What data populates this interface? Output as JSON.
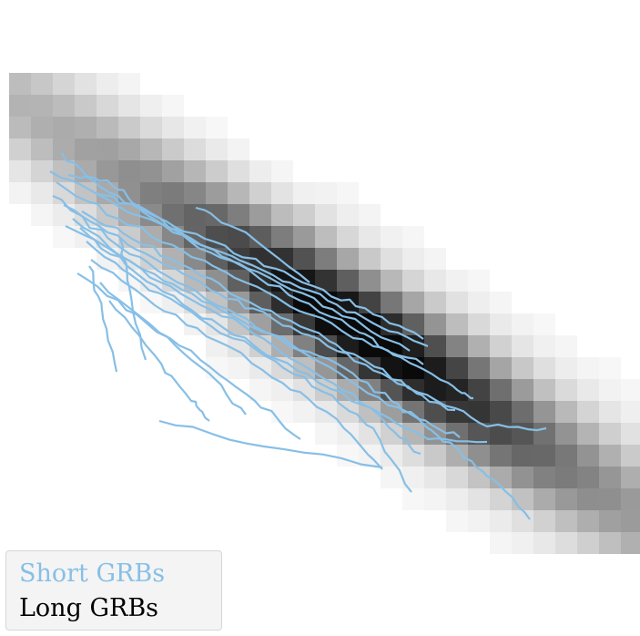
{
  "chart_data": {
    "type": "heatmap",
    "title": "",
    "xlabel": "",
    "ylabel": "",
    "grid": false,
    "background_colormap": "greys",
    "background_density": {
      "description_rows_are_stripes_along_the_diagonal_band": true,
      "cells": [
        [
          1,
          0.2
        ],
        [
          2,
          0.35
        ],
        [
          3,
          0.45
        ],
        [
          4,
          0.5
        ],
        [
          5,
          0.55
        ],
        [
          6,
          0.6
        ],
        [
          7,
          0.62
        ],
        [
          8,
          0.68
        ],
        [
          9,
          0.72
        ],
        [
          10,
          0.78
        ],
        [
          11,
          0.82
        ],
        [
          12,
          0.88
        ],
        [
          13,
          0.92
        ],
        [
          14,
          0.95
        ],
        [
          15,
          0.98
        ],
        [
          16,
          1.0
        ],
        [
          17,
          0.96
        ],
        [
          18,
          0.9
        ],
        [
          19,
          0.82
        ],
        [
          20,
          0.7
        ],
        [
          21,
          0.58
        ],
        [
          22,
          0.45
        ],
        [
          23,
          0.33
        ],
        [
          24,
          0.22
        ],
        [
          25,
          0.12
        ],
        [
          26,
          0.06
        ]
      ]
    },
    "series": [
      {
        "name": "Short GRBs",
        "color": "#87bfe6",
        "tracks": [
          [
            [
              68,
              168
            ],
            [
              110,
              205
            ],
            [
              165,
              238
            ],
            [
              230,
              272
            ],
            [
              300,
              302
            ],
            [
              360,
              330
            ],
            [
              420,
              360
            ],
            [
              470,
              380
            ]
          ],
          [
            [
              55,
              188
            ],
            [
              120,
              220
            ],
            [
              190,
              255
            ],
            [
              250,
              285
            ],
            [
              320,
              318
            ],
            [
              390,
              350
            ],
            [
              450,
              385
            ]
          ],
          [
            [
              62,
              200
            ],
            [
              130,
              240
            ],
            [
              200,
              275
            ],
            [
              270,
              310
            ],
            [
              340,
              345
            ],
            [
              410,
              380
            ],
            [
              465,
              400
            ]
          ],
          [
            [
              75,
              192
            ],
            [
              118,
              198
            ],
            [
              150,
              225
            ],
            [
              205,
              260
            ],
            [
              262,
              290
            ],
            [
              330,
              330
            ],
            [
              395,
              365
            ],
            [
              440,
              392
            ],
            [
              492,
              420
            ],
            [
              520,
              437
            ]
          ],
          [
            [
              58,
              215
            ],
            [
              118,
              255
            ],
            [
              180,
              290
            ],
            [
              240,
              322
            ],
            [
              300,
              350
            ],
            [
              360,
              380
            ],
            [
              420,
              410
            ],
            [
              480,
              440
            ],
            [
              535,
              468
            ],
            [
              600,
              470
            ]
          ],
          [
            [
              70,
              225
            ],
            [
              130,
              270
            ],
            [
              195,
              310
            ],
            [
              260,
              345
            ],
            [
              320,
              378
            ],
            [
              380,
              405
            ],
            [
              430,
              440
            ],
            [
              470,
              470
            ],
            [
              505,
              495
            ],
            [
              540,
              525
            ],
            [
              582,
              570
            ]
          ],
          [
            [
              80,
              240
            ],
            [
              140,
              285
            ],
            [
              200,
              318
            ],
            [
              265,
              352
            ],
            [
              330,
              385
            ],
            [
              395,
              425
            ],
            [
              460,
              460
            ],
            [
              505,
              480
            ]
          ],
          [
            [
              88,
              250
            ],
            [
              150,
              300
            ],
            [
              210,
              340
            ],
            [
              280,
              380
            ],
            [
              350,
              420
            ],
            [
              420,
              455
            ],
            [
              470,
              482
            ],
            [
              535,
              485
            ]
          ],
          [
            [
              95,
              265
            ],
            [
              155,
              310
            ],
            [
              220,
              350
            ],
            [
              290,
              390
            ],
            [
              355,
              430
            ],
            [
              410,
              470
            ],
            [
              452,
              540
            ]
          ],
          [
            [
              100,
              285
            ],
            [
              170,
              335
            ],
            [
              240,
              375
            ],
            [
              310,
              420
            ],
            [
              370,
              460
            ],
            [
              420,
              515
            ]
          ],
          [
            [
              85,
              300
            ],
            [
              150,
              345
            ],
            [
              220,
              395
            ],
            [
              280,
              440
            ],
            [
              330,
              482
            ]
          ],
          [
            [
              110,
              310
            ],
            [
              175,
              365
            ],
            [
              230,
              410
            ],
            [
              270,
              455
            ]
          ],
          [
            [
              120,
              330
            ],
            [
              170,
              390
            ],
            [
              210,
              440
            ],
            [
              230,
              462
            ]
          ],
          [
            [
              98,
              292
            ],
            [
              112,
              340
            ],
            [
              128,
              408
            ]
          ],
          [
            [
              132,
              262
            ],
            [
              142,
              315
            ],
            [
              160,
              395
            ]
          ],
          [
            [
              175,
              462
            ],
            [
              290,
              490
            ],
            [
              420,
              513
            ]
          ],
          [
            [
              215,
              228
            ],
            [
              270,
              255
            ],
            [
              340,
              310
            ]
          ],
          [
            [
              105,
              212
            ],
            [
              160,
              232
            ],
            [
              225,
              262
            ],
            [
              290,
              292
            ],
            [
              355,
              318
            ],
            [
              410,
              345
            ],
            [
              465,
              372
            ]
          ],
          [
            [
              90,
              232
            ],
            [
              145,
              262
            ],
            [
              210,
              295
            ],
            [
              275,
              332
            ],
            [
              340,
              362
            ],
            [
              400,
              395
            ],
            [
              458,
              432
            ],
            [
              500,
              450
            ]
          ],
          [
            [
              72,
              248
            ],
            [
              132,
              282
            ],
            [
              198,
              322
            ],
            [
              268,
              358
            ],
            [
              328,
              398
            ],
            [
              388,
              432
            ],
            [
              428,
              470
            ],
            [
              462,
              498
            ]
          ]
        ]
      },
      {
        "name": "Long GRBs",
        "color": "#000000"
      }
    ],
    "legend": {
      "position": "bottom-left",
      "entries": [
        "Short GRBs",
        "Long GRBs"
      ]
    }
  }
}
